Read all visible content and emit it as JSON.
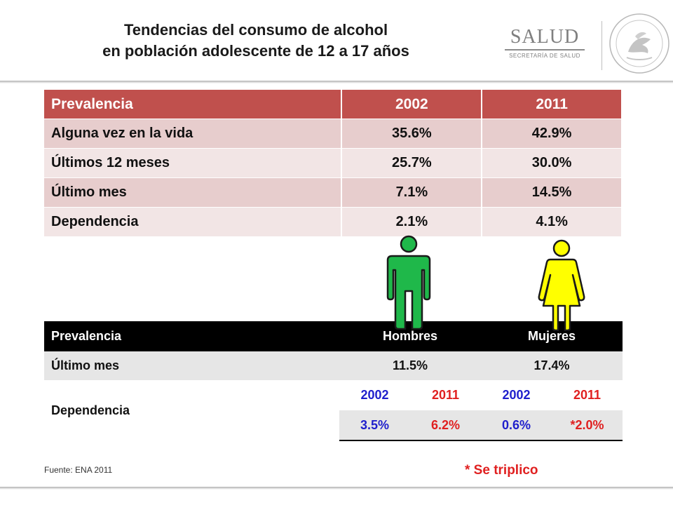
{
  "header": {
    "title_line1": "Tendencias del consumo de alcohol",
    "title_line2": "en población adolescente de 12 a 17 años",
    "logo_main": "SALUD",
    "logo_sub": "SECRETARÍA DE SALUD",
    "seal_icon": "mexican-coat-of-arms-seal"
  },
  "table_top": {
    "headers": [
      "Prevalencia",
      "2002",
      "2011"
    ],
    "rows": [
      [
        "Alguna vez en la vida",
        "35.6%",
        "42.9%"
      ],
      [
        "Últimos 12 meses",
        "25.7%",
        "30.0%"
      ],
      [
        "Último mes",
        "7.1%",
        "14.5%"
      ],
      [
        "Dependencia",
        "2.1%",
        "4.1%"
      ]
    ],
    "colors": {
      "header": "#c0504d",
      "row_dark": "#e7cdcd",
      "row_light": "#f2e5e5"
    }
  },
  "table_bottom": {
    "headers": [
      "Prevalencia",
      "Hombres",
      "Mujeres"
    ],
    "ultimo_mes": {
      "label": "Último mes",
      "hombres": "11.5%",
      "mujeres": "17.4%"
    },
    "dependencia": {
      "label": "Dependencia",
      "years": [
        "2002",
        "2011",
        "2002",
        "2011"
      ],
      "values": [
        "3.5%",
        "6.2%",
        "0.6%",
        "*2.0%"
      ]
    },
    "colors": {
      "blue": "#1f1fcc",
      "red": "#e02020",
      "header": "#000000"
    }
  },
  "figures": {
    "male_icon": "male-figure-icon",
    "female_icon": "female-figure-icon",
    "male_color": "#1fb84a",
    "female_color": "#ffff00"
  },
  "footer": {
    "source": "Fuente: ENA 2011",
    "note": "* Se triplico"
  }
}
